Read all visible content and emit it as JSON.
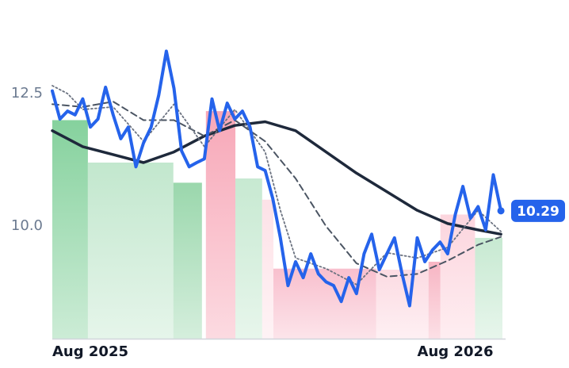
{
  "chart_data": {
    "type": "line",
    "xlim": [
      0,
      14.8
    ],
    "ylim": [
      7.88,
      14.25
    ],
    "xticks": [
      {
        "value": 0,
        "label": "Aug 2025"
      },
      {
        "value": 12,
        "label": "Aug 2026"
      }
    ],
    "yticks": [
      {
        "value": 10,
        "label": "10.0"
      },
      12.5
    ],
    "regions": [
      {
        "x0": 0,
        "x1": 1.17,
        "top": 12.0,
        "color": "#7fcf98"
      },
      {
        "x0": 1.17,
        "x1": 3.98,
        "top": 11.2,
        "color": "#bfe6cb"
      },
      {
        "x0": 3.98,
        "x1": 4.92,
        "top": 10.82,
        "color": "#95d5a8"
      },
      {
        "x0": 5.05,
        "x1": 6.02,
        "top": 12.17,
        "color": "#f7a3b4"
      },
      {
        "x0": 6.02,
        "x1": 6.9,
        "top": 10.9,
        "color": "#c4e8cf"
      },
      {
        "x0": 6.9,
        "x1": 7.27,
        "top": 10.5,
        "color": "#fde0e6"
      },
      {
        "x0": 7.27,
        "x1": 10.65,
        "top": 9.2,
        "color": "#f8bccb"
      },
      {
        "x0": 10.65,
        "x1": 12.37,
        "top": 9.18,
        "color": "#fcd9e1"
      },
      {
        "x0": 12.37,
        "x1": 12.76,
        "top": 9.33,
        "color": "#f7b1c0"
      },
      {
        "x0": 12.76,
        "x1": 13.9,
        "top": 10.22,
        "color": "#fcd3dc"
      },
      {
        "x0": 13.9,
        "x1": 14.8,
        "top": 9.78,
        "color": "#c4e8cf"
      }
    ],
    "series": [
      {
        "color": "#2563eb",
        "style": "solid",
        "width": 4,
        "x": [
          0,
          0.25,
          0.5,
          0.75,
          1,
          1.25,
          1.5,
          1.75,
          2,
          2.25,
          2.5,
          2.75,
          3,
          3.25,
          3.5,
          3.75,
          4,
          4.25,
          4.5,
          4.75,
          5,
          5.25,
          5.5,
          5.75,
          6,
          6.25,
          6.5,
          6.75,
          7,
          7.25,
          7.5,
          7.75,
          8,
          8.25,
          8.5,
          8.75,
          9,
          9.25,
          9.5,
          9.75,
          10,
          10.25,
          10.5,
          10.75,
          11,
          11.25,
          11.5,
          11.75,
          12,
          12.25,
          12.5,
          12.75,
          13,
          13.25,
          13.5,
          13.75,
          14,
          14.25,
          14.5,
          14.75
        ],
        "values": [
          12.55,
          12.02,
          12.17,
          12.1,
          12.4,
          11.87,
          12.02,
          12.62,
          12.1,
          11.65,
          11.87,
          11.12,
          11.57,
          11.87,
          12.47,
          13.3,
          12.6,
          11.42,
          11.12,
          11.2,
          11.27,
          12.4,
          11.8,
          12.32,
          12.02,
          12.17,
          11.87,
          11.12,
          11.05,
          10.52,
          9.78,
          8.88,
          9.33,
          9.03,
          9.48,
          9.1,
          8.95,
          8.88,
          8.58,
          9.03,
          8.73,
          9.48,
          9.85,
          9.18,
          9.48,
          9.78,
          9.1,
          8.5,
          9.78,
          9.33,
          9.55,
          9.7,
          9.48,
          10.22,
          10.75,
          10.15,
          10.37,
          9.93,
          10.97,
          10.29
        ]
      },
      {
        "color": "#1e293b",
        "style": "solid",
        "width": 3.5,
        "x": [
          0,
          1,
          2,
          3,
          4,
          5,
          6,
          7,
          8,
          9,
          10,
          11,
          12,
          13,
          14,
          14.75
        ],
        "values": [
          11.8,
          11.5,
          11.35,
          11.2,
          11.4,
          11.7,
          11.9,
          11.97,
          11.8,
          11.4,
          11.0,
          10.65,
          10.3,
          10.05,
          9.93,
          9.85
        ]
      },
      {
        "color": "#4b5563",
        "style": "dashed",
        "width": 2,
        "x": [
          0,
          1,
          2,
          3,
          4,
          5,
          6,
          7,
          8,
          9,
          10,
          11,
          12,
          13,
          14,
          14.75
        ],
        "values": [
          12.3,
          12.25,
          12.35,
          12.0,
          12.0,
          11.7,
          12.0,
          11.6,
          10.9,
          10.0,
          9.3,
          9.05,
          9.1,
          9.35,
          9.65,
          9.8
        ]
      },
      {
        "color": "#6b7280",
        "style": "dotted",
        "width": 1.8,
        "x": [
          0,
          0.5,
          1,
          2,
          3,
          4,
          5,
          6,
          7,
          7.5,
          8,
          9,
          10,
          11,
          12,
          13,
          14,
          14.75
        ],
        "values": [
          12.65,
          12.5,
          12.2,
          12.25,
          11.6,
          12.3,
          11.5,
          12.2,
          11.4,
          10.3,
          9.4,
          9.2,
          8.9,
          9.5,
          9.4,
          9.6,
          10.3,
          9.9
        ]
      }
    ]
  }
}
